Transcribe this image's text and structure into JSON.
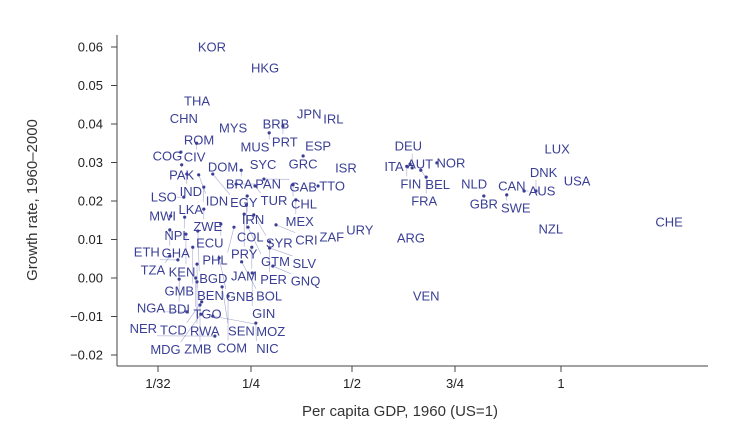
{
  "chart_data": {
    "type": "scatter",
    "title": "",
    "xlabel": "Per capita GDP, 1960 (US=1)",
    "ylabel": "Growth rate, 1960–2000",
    "x_ticks": [
      {
        "value": 0.03125,
        "label": "1/32"
      },
      {
        "value": 0.25,
        "label": "1/4"
      },
      {
        "value": 0.5,
        "label": "1/2"
      },
      {
        "value": 0.75,
        "label": "3/4"
      },
      {
        "value": 1,
        "label": "1"
      }
    ],
    "y_ticks": [
      -0.02,
      -0.01,
      0,
      0.01,
      0.02,
      0.03,
      0.04,
      0.05,
      0.06
    ],
    "ylim": [
      -0.02,
      0.06
    ],
    "grid": false,
    "marker": "country code text",
    "label_color": "#3a3f95",
    "points": [
      {
        "label": "KOR",
        "x": 0.158,
        "y": 0.06
      },
      {
        "label": "HKG",
        "x": 0.285,
        "y": 0.0545
      },
      {
        "label": "THA",
        "x": 0.123,
        "y": 0.046
      },
      {
        "label": "CHN",
        "x": 0.092,
        "y": 0.043
      },
      {
        "label": "MYS",
        "x": 0.208,
        "y": 0.039
      },
      {
        "label": "BRB",
        "x": 0.312,
        "y": 0.04
      },
      {
        "label": "PRT",
        "x": 0.329,
        "y": 0.0395
      },
      {
        "label": "MUS",
        "x": 0.295,
        "y": 0.0377
      },
      {
        "label": "JPN",
        "x": 0.394,
        "y": 0.0426
      },
      {
        "label": "IRL",
        "x": 0.449,
        "y": 0.0413
      },
      {
        "label": "ROM",
        "x": 0.128,
        "y": 0.0358
      },
      {
        "label": "CIV",
        "x": 0.122,
        "y": 0.035
      },
      {
        "label": "COG",
        "x": 0.085,
        "y": 0.0327
      },
      {
        "label": "ESP",
        "x": 0.416,
        "y": 0.0343
      },
      {
        "label": "GRC",
        "x": 0.379,
        "y": 0.0317
      },
      {
        "label": "SYC",
        "x": 0.28,
        "y": 0.031
      },
      {
        "label": "ISR",
        "x": 0.485,
        "y": 0.0286
      },
      {
        "label": "PAK",
        "x": 0.087,
        "y": 0.0294
      },
      {
        "label": "DOM",
        "x": 0.175,
        "y": 0.0288
      },
      {
        "label": "BRA",
        "x": 0.227,
        "y": 0.028
      },
      {
        "label": "IND",
        "x": 0.099,
        "y": 0.027
      },
      {
        "label": "IDN",
        "x": 0.127,
        "y": 0.0268
      },
      {
        "label": "EGY",
        "x": 0.16,
        "y": 0.027
      },
      {
        "label": "LKA",
        "x": 0.139,
        "y": 0.0236
      },
      {
        "label": "PAN",
        "x": 0.215,
        "y": 0.0244
      },
      {
        "label": "TUR",
        "x": 0.26,
        "y": 0.0239
      },
      {
        "label": "GAB",
        "x": 0.282,
        "y": 0.0257
      },
      {
        "label": "CHL",
        "x": 0.354,
        "y": 0.0242
      },
      {
        "label": "TTO",
        "x": 0.416,
        "y": 0.0239
      },
      {
        "label": "ITA",
        "x": 0.602,
        "y": 0.029
      },
      {
        "label": "AUT",
        "x": 0.641,
        "y": 0.0296
      },
      {
        "label": "FIN",
        "x": 0.633,
        "y": 0.029
      },
      {
        "label": "DEU",
        "x": 0.646,
        "y": 0.0286
      },
      {
        "label": "BEL",
        "x": 0.667,
        "y": 0.028
      },
      {
        "label": "NOR",
        "x": 0.706,
        "y": 0.0299
      },
      {
        "label": "FRA",
        "x": 0.68,
        "y": 0.0262
      },
      {
        "label": "NLD",
        "x": 0.795,
        "y": 0.0244
      },
      {
        "label": "CAN",
        "x": 0.884,
        "y": 0.0239
      },
      {
        "label": "GBR",
        "x": 0.818,
        "y": 0.0213
      },
      {
        "label": "SWE",
        "x": 0.872,
        "y": 0.0216
      },
      {
        "label": "AUS",
        "x": 0.913,
        "y": 0.0226
      },
      {
        "label": "DNK",
        "x": 0.941,
        "y": 0.0226
      },
      {
        "label": "LUX",
        "x": 0.991,
        "y": 0.0335
      },
      {
        "label": "USA",
        "x": 1.038,
        "y": 0.0252
      },
      {
        "label": "NZL",
        "x": 0.976,
        "y": 0.0127
      },
      {
        "label": "CHE",
        "x": 1.255,
        "y": 0.0145
      },
      {
        "label": "MEX",
        "x": 0.361,
        "y": 0.0203
      },
      {
        "label": "LSO",
        "x": 0.092,
        "y": 0.021
      },
      {
        "label": "IRN",
        "x": 0.241,
        "y": 0.0213
      },
      {
        "label": "ZWE",
        "x": 0.139,
        "y": 0.0179
      },
      {
        "label": "COL",
        "x": 0.239,
        "y": 0.0189
      },
      {
        "label": "MWI",
        "x": 0.061,
        "y": 0.0161
      },
      {
        "label": "NPL",
        "x": 0.094,
        "y": 0.0158
      },
      {
        "label": "PRY",
        "x": 0.234,
        "y": 0.0166
      },
      {
        "label": "SYR",
        "x": 0.257,
        "y": 0.0164
      },
      {
        "label": "CRI",
        "x": 0.312,
        "y": 0.0138
      },
      {
        "label": "ECU",
        "x": 0.179,
        "y": 0.014
      },
      {
        "label": "PHL",
        "x": 0.21,
        "y": 0.0132
      },
      {
        "label": "GTM",
        "x": 0.243,
        "y": 0.0132
      },
      {
        "label": "ZAF",
        "x": 0.44,
        "y": 0.0106
      },
      {
        "label": "URY",
        "x": 0.519,
        "y": 0.0125
      },
      {
        "label": "ARG",
        "x": 0.643,
        "y": 0.0104
      },
      {
        "label": "VEN",
        "x": 0.68,
        "y": -0.0047
      },
      {
        "label": "GHA",
        "x": 0.059,
        "y": 0.0125
      },
      {
        "label": "KEN",
        "x": 0.097,
        "y": 0.0114
      },
      {
        "label": "BGD",
        "x": 0.125,
        "y": 0.0122
      },
      {
        "label": "PER",
        "x": 0.296,
        "y": 0.0094
      },
      {
        "label": "JAM",
        "x": 0.252,
        "y": 0.008
      },
      {
        "label": "SLV",
        "x": 0.296,
        "y": 0.0078
      },
      {
        "label": "GMB",
        "x": 0.113,
        "y": 0.008
      },
      {
        "label": "TZA",
        "x": 0.059,
        "y": 0.0057
      },
      {
        "label": "ETH",
        "x": 0.078,
        "y": 0.0047
      },
      {
        "label": "BEN",
        "x": 0.123,
        "y": 0.0036
      },
      {
        "label": "GNB",
        "x": 0.175,
        "y": 0.0052
      },
      {
        "label": "BOL",
        "x": 0.228,
        "y": 0.0042
      },
      {
        "label": "GNQ",
        "x": 0.304,
        "y": 0.0031
      },
      {
        "label": "GIN",
        "x": 0.253,
        "y": 0.0013
      },
      {
        "label": "BDI",
        "x": 0.081,
        "y": -0.0003
      },
      {
        "label": "TGO",
        "x": 0.12,
        "y": 0.0
      },
      {
        "label": "RWA",
        "x": 0.123,
        "y": -0.001
      },
      {
        "label": "SEN",
        "x": 0.182,
        "y": -0.0023
      },
      {
        "label": "COM",
        "x": 0.196,
        "y": -0.0047
      },
      {
        "label": "TCD",
        "x": 0.134,
        "y": -0.0062
      },
      {
        "label": "ZMB",
        "x": 0.13,
        "y": -0.007
      },
      {
        "label": "NGA",
        "x": 0.099,
        "y": -0.0088
      },
      {
        "label": "MDG",
        "x": 0.132,
        "y": -0.0094
      },
      {
        "label": "MOZ",
        "x": 0.16,
        "y": -0.0099
      },
      {
        "label": "NIC",
        "x": 0.262,
        "y": -0.0117
      },
      {
        "label": "NER",
        "x": 0.165,
        "y": -0.0151
      }
    ]
  }
}
